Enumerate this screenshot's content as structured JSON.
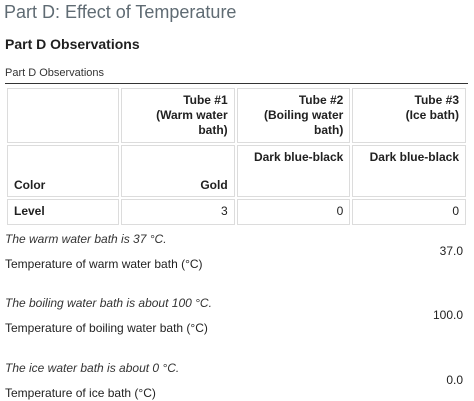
{
  "page": {
    "part_title": "Part D: Effect of Temperature",
    "observations_heading": "Part D Observations",
    "table_caption": "Part D Observations"
  },
  "table": {
    "headers": [
      {
        "line1": "",
        "line2": ""
      },
      {
        "line1": "Tube #1",
        "line2": "(Warm water bath)"
      },
      {
        "line1": "Tube #2",
        "line2": "(Boiling water bath)"
      },
      {
        "line1": "Tube #3",
        "line2": "(Ice bath)"
      }
    ],
    "rows": [
      {
        "label": "Color",
        "values": [
          "Gold",
          "Dark blue-black",
          "Dark blue-black"
        ]
      },
      {
        "label": "Level",
        "values": [
          "3",
          "0",
          "0"
        ]
      }
    ]
  },
  "fields": [
    {
      "hint": "The warm water bath is 37 °C.",
      "label": "Temperature of warm water bath (°C)",
      "value": "37.0"
    },
    {
      "hint": "The boiling water bath is about 100 °C.",
      "label": "Temperature of boiling water bath (°C)",
      "value": "100.0"
    },
    {
      "hint": "The ice water bath is about 0 °C.",
      "label": "Temperature of ice bath (°C)",
      "value": "0.0"
    }
  ]
}
